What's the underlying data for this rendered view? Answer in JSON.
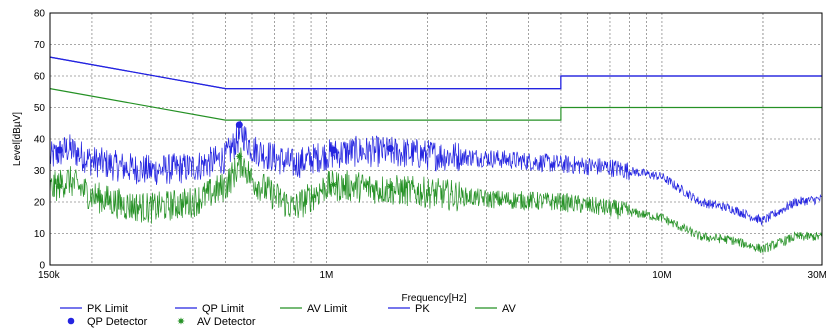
{
  "chart_data": {
    "type": "line",
    "xscale": "log",
    "xlim": [
      150000,
      30000000
    ],
    "ylim": [
      0,
      80
    ],
    "xlabel": "Frequency[Hz]",
    "ylabel": "Level[dBµV]",
    "xticks": [
      {
        "value": 150000,
        "label": "150k"
      },
      {
        "value": 1000000,
        "label": "1M"
      },
      {
        "value": 10000000,
        "label": "10M"
      },
      {
        "value": 30000000,
        "label": "30M"
      }
    ],
    "yticks": [
      0,
      10,
      20,
      30,
      40,
      50,
      60,
      70,
      80
    ],
    "grid": true,
    "colors": {
      "blue": "#2424e0",
      "green": "#259125",
      "grid": "#8c8c8c"
    },
    "series": [
      {
        "name": "PK Limit",
        "color": "#2424e0",
        "x": [
          150000,
          500000,
          500000,
          5000000,
          5000000,
          30000000
        ],
        "y": [
          66,
          56,
          56,
          56,
          60,
          60
        ]
      },
      {
        "name": "QP Limit",
        "color": "#2424e0",
        "x": [
          150000,
          500000,
          500000,
          5000000,
          5000000,
          30000000
        ],
        "y": [
          66,
          56,
          56,
          56,
          60,
          60
        ]
      },
      {
        "name": "AV Limit",
        "color": "#259125",
        "x": [
          150000,
          500000,
          500000,
          5000000,
          5000000,
          30000000
        ],
        "y": [
          56,
          46,
          46,
          46,
          50,
          50
        ]
      },
      {
        "name": "PK",
        "color": "#2424e0",
        "x": [
          150000,
          170000,
          200000,
          250000,
          300000,
          400000,
          500000,
          560000,
          600000,
          700000,
          800000,
          1000000,
          1200000,
          1500000,
          2000000,
          3000000,
          5000000,
          7000000,
          10000000,
          13000000,
          16000000,
          20000000,
          25000000,
          30000000
        ],
        "y": [
          34,
          37,
          33,
          31,
          30,
          31,
          34,
          42,
          37,
          34,
          32,
          35,
          36,
          36,
          35,
          34,
          32,
          31,
          28,
          20,
          18,
          14,
          20,
          21
        ]
      },
      {
        "name": "AV",
        "color": "#259125",
        "x": [
          150000,
          170000,
          200000,
          250000,
          300000,
          400000,
          500000,
          560000,
          600000,
          700000,
          800000,
          1000000,
          1200000,
          1500000,
          2000000,
          3000000,
          5000000,
          7000000,
          10000000,
          13000000,
          16000000,
          20000000,
          25000000,
          30000000
        ],
        "y": [
          24,
          27,
          22,
          19,
          18,
          20,
          25,
          33,
          27,
          22,
          18,
          25,
          25,
          24,
          23,
          21,
          20,
          18,
          15,
          9,
          8,
          5,
          9,
          9
        ]
      }
    ],
    "markers": [
      {
        "name": "QP Detector",
        "color": "#2424e0",
        "shape": "circle",
        "points": [
          {
            "x": 160000,
            "y": 36.5
          },
          {
            "x": 550000,
            "y": 44.5
          },
          {
            "x": 1050000,
            "y": 36.5
          },
          {
            "x": 1550000,
            "y": 37
          }
        ]
      },
      {
        "name": "AV Detector",
        "color": "#259125",
        "shape": "star",
        "points": [
          {
            "x": 160000,
            "y": 25
          },
          {
            "x": 550000,
            "y": 34.5
          },
          {
            "x": 1050000,
            "y": 25.5
          },
          {
            "x": 1550000,
            "y": 25
          }
        ]
      }
    ],
    "legend": {
      "placement": "bottom",
      "items": [
        {
          "label": "PK Limit",
          "color": "#2424e0",
          "kind": "line"
        },
        {
          "label": "QP Limit",
          "color": "#2424e0",
          "kind": "line"
        },
        {
          "label": "AV Limit",
          "color": "#259125",
          "kind": "line"
        },
        {
          "label": "PK",
          "color": "#2424e0",
          "kind": "line"
        },
        {
          "label": "AV",
          "color": "#259125",
          "kind": "line"
        },
        {
          "label": "QP Detector",
          "color": "#2424e0",
          "kind": "circle"
        },
        {
          "label": "AV Detector",
          "color": "#259125",
          "kind": "star"
        }
      ]
    }
  }
}
